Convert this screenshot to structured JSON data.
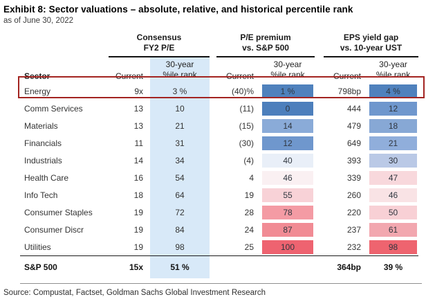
{
  "chart_data": {
    "type": "table",
    "title": "Exhibit 8: Sector valuations – absolute, relative, and historical percentile rank",
    "subtitle": "as of June 30, 2022",
    "column_groups": [
      {
        "line1": "Consensus",
        "line2": "FY2 P/E"
      },
      {
        "line1": "P/E premium",
        "line2": "vs. S&P 500"
      },
      {
        "line1": "EPS yield gap",
        "line2": "vs. 10-year UST"
      }
    ],
    "subheaders": {
      "sector": "Sector",
      "current": "Current",
      "pct_line1": "30-year",
      "pct_line2": "%ile rank"
    },
    "rows": [
      {
        "sector": "Energy",
        "pe": "9x",
        "pe_pct": "3 %",
        "prem": "(40)%",
        "prem_pct": "1 %",
        "prem_color": "#4f81bd",
        "eps": "798bp",
        "eps_pct": "4 %",
        "eps_color": "#4f81bd",
        "highlight": true
      },
      {
        "sector": "Comm Services",
        "pe": "13",
        "pe_pct": "10",
        "prem": "(11)",
        "prem_pct": "0",
        "prem_color": "#4d7fbc",
        "eps": "444",
        "eps_pct": "12",
        "eps_color": "#6f97cd"
      },
      {
        "sector": "Materials",
        "pe": "13",
        "pe_pct": "21",
        "prem": "(15)",
        "prem_pct": "14",
        "prem_color": "#8aabd8",
        "eps": "479",
        "eps_pct": "18",
        "eps_color": "#87a8d5"
      },
      {
        "sector": "Financials",
        "pe": "11",
        "pe_pct": "31",
        "prem": "(30)",
        "prem_pct": "12",
        "prem_color": "#6f97cd",
        "eps": "649",
        "eps_pct": "21",
        "eps_color": "#90aedb"
      },
      {
        "sector": "Industrials",
        "pe": "14",
        "pe_pct": "34",
        "prem": "(4)",
        "prem_pct": "40",
        "prem_color": "#e9eff8",
        "eps": "393",
        "eps_pct": "30",
        "eps_color": "#bac9e6"
      },
      {
        "sector": "Health Care",
        "pe": "16",
        "pe_pct": "54",
        "prem": "4",
        "prem_pct": "46",
        "prem_color": "#faf0f2",
        "eps": "339",
        "eps_pct": "47",
        "eps_color": "#f8d8dc"
      },
      {
        "sector": "Info Tech",
        "pe": "18",
        "pe_pct": "64",
        "prem": "19",
        "prem_pct": "55",
        "prem_color": "#f8d2d7",
        "eps": "260",
        "eps_pct": "46",
        "eps_color": "#f9e3e5"
      },
      {
        "sector": "Consumer Staples",
        "pe": "19",
        "pe_pct": "72",
        "prem": "28",
        "prem_pct": "78",
        "prem_color": "#f49ba4",
        "eps": "220",
        "eps_pct": "50",
        "eps_color": "#f8d0d5"
      },
      {
        "sector": "Consumer Discr",
        "pe": "19",
        "pe_pct": "84",
        "prem": "24",
        "prem_pct": "87",
        "prem_color": "#f18b94",
        "eps": "237",
        "eps_pct": "61",
        "eps_color": "#f2a7af"
      },
      {
        "sector": "Utilities",
        "pe": "19",
        "pe_pct": "98",
        "prem": "25",
        "prem_pct": "100",
        "prem_color": "#ee6370",
        "eps": "232",
        "eps_pct": "98",
        "eps_color": "#ee646f"
      }
    ],
    "summary_row": {
      "sector": "S&P 500",
      "pe": "15x",
      "pe_pct": "51 %",
      "prem": "",
      "prem_pct": "",
      "eps": "364bp",
      "eps_pct": "39 %"
    },
    "source": "Source: Compustat, Factset, Goldman Sachs Global Investment Research",
    "highlighted_row": "Energy"
  },
  "colors": {
    "band_blue": "#d8e9f8",
    "highlight_border": "#a32421",
    "rule_dark": "#1a1a1a",
    "rule_gray": "#8f8f8f"
  }
}
